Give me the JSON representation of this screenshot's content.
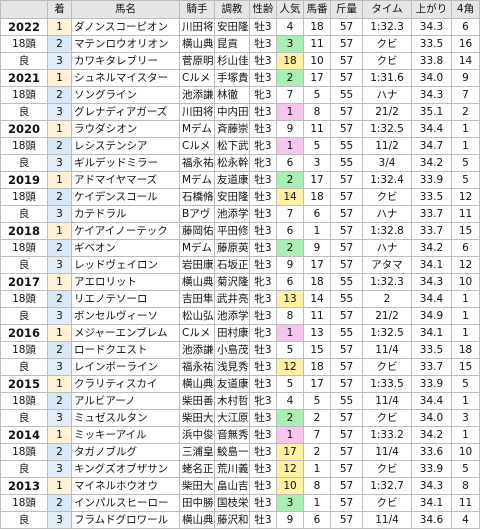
{
  "headers": [
    "",
    "着",
    "馬名",
    "騎手",
    "調教",
    "性齢",
    "人気",
    "馬番",
    "斤量",
    "タイム",
    "上がり",
    "4角"
  ],
  "years": [
    {
      "year": "2022",
      "runners": "18頭",
      "condition": "良",
      "rows": [
        {
          "pos": "1",
          "horse": "ダノンスコーピオン",
          "jockey": "川田将",
          "trainer": "安田隆",
          "sexage": "牡3",
          "pop": "4",
          "post": "18",
          "wt": "57",
          "time": "1:32.3",
          "diff": "",
          "last3f": "34.3",
          "corner": "6"
        },
        {
          "pos": "2",
          "horse": "マテンロウオリオン",
          "jockey": "横山典",
          "trainer": "昆貢",
          "sexage": "牡3",
          "pop": "3",
          "post": "11",
          "wt": "57",
          "time": "",
          "diff": "クビ",
          "last3f": "33.5",
          "corner": "16"
        },
        {
          "pos": "3",
          "horse": "カワキタレブリー",
          "jockey": "菅原明",
          "trainer": "杉山佳",
          "sexage": "牡3",
          "pop": "18",
          "post": "10",
          "wt": "57",
          "time": "",
          "diff": "クビ",
          "last3f": "33.8",
          "corner": "14"
        }
      ]
    },
    {
      "year": "2021",
      "runners": "18頭",
      "condition": "良",
      "rows": [
        {
          "pos": "1",
          "horse": "シュネルマイスター",
          "jockey": "Cルメ",
          "trainer": "手塚貴",
          "sexage": "牡3",
          "pop": "2",
          "post": "17",
          "wt": "57",
          "time": "1:31.6",
          "diff": "",
          "last3f": "34.0",
          "corner": "9"
        },
        {
          "pos": "2",
          "horse": "ソングライン",
          "jockey": "池添謙",
          "trainer": "林徹",
          "sexage": "牝3",
          "pop": "7",
          "post": "5",
          "wt": "55",
          "time": "",
          "diff": "ハナ",
          "last3f": "34.3",
          "corner": "7"
        },
        {
          "pos": "3",
          "horse": "グレナディアガーズ",
          "jockey": "川田将",
          "trainer": "中内田",
          "sexage": "牡3",
          "pop": "1",
          "post": "8",
          "wt": "57",
          "time": "",
          "diff": "21/2",
          "last3f": "35.1",
          "corner": "2"
        }
      ]
    },
    {
      "year": "2020",
      "runners": "18頭",
      "condition": "良",
      "rows": [
        {
          "pos": "1",
          "horse": "ラウダシオン",
          "jockey": "Mデム",
          "trainer": "斉藤崇",
          "sexage": "牡3",
          "pop": "9",
          "post": "11",
          "wt": "57",
          "time": "1:32.5",
          "diff": "",
          "last3f": "34.4",
          "corner": "1"
        },
        {
          "pos": "2",
          "horse": "レシステンシア",
          "jockey": "Cルメ",
          "trainer": "松下武",
          "sexage": "牝3",
          "pop": "1",
          "post": "5",
          "wt": "55",
          "time": "",
          "diff": "11/2",
          "last3f": "34.7",
          "corner": "1"
        },
        {
          "pos": "3",
          "horse": "ギルデッドミラー",
          "jockey": "福永祐",
          "trainer": "松永幹",
          "sexage": "牝3",
          "pop": "6",
          "post": "3",
          "wt": "55",
          "time": "",
          "diff": "3/4",
          "last3f": "34.2",
          "corner": "5"
        }
      ]
    },
    {
      "year": "2019",
      "runners": "18頭",
      "condition": "良",
      "rows": [
        {
          "pos": "1",
          "horse": "アドマイヤマーズ",
          "jockey": "Mデム",
          "trainer": "友道康",
          "sexage": "牡3",
          "pop": "2",
          "post": "17",
          "wt": "57",
          "time": "1:32.4",
          "diff": "",
          "last3f": "33.9",
          "corner": "5"
        },
        {
          "pos": "2",
          "horse": "ケイデンスコール",
          "jockey": "石橋脩",
          "trainer": "安田隆",
          "sexage": "牡3",
          "pop": "14",
          "post": "18",
          "wt": "57",
          "time": "",
          "diff": "クビ",
          "last3f": "33.5",
          "corner": "12"
        },
        {
          "pos": "3",
          "horse": "カテドラル",
          "jockey": "Bアヴ",
          "trainer": "池添学",
          "sexage": "牡3",
          "pop": "7",
          "post": "6",
          "wt": "57",
          "time": "",
          "diff": "ハナ",
          "last3f": "33.7",
          "corner": "11"
        }
      ]
    },
    {
      "year": "2018",
      "runners": "18頭",
      "condition": "良",
      "rows": [
        {
          "pos": "1",
          "horse": "ケイアイノーテック",
          "jockey": "藤岡佑",
          "trainer": "平田修",
          "sexage": "牡3",
          "pop": "6",
          "post": "1",
          "wt": "57",
          "time": "1:32.8",
          "diff": "",
          "last3f": "33.7",
          "corner": "15"
        },
        {
          "pos": "2",
          "horse": "ギベオン",
          "jockey": "Mデム",
          "trainer": "藤原英",
          "sexage": "牡3",
          "pop": "2",
          "post": "9",
          "wt": "57",
          "time": "",
          "diff": "ハナ",
          "last3f": "34.2",
          "corner": "6"
        },
        {
          "pos": "3",
          "horse": "レッドヴェイロン",
          "jockey": "岩田康",
          "trainer": "石坂正",
          "sexage": "牡3",
          "pop": "9",
          "post": "17",
          "wt": "57",
          "time": "",
          "diff": "アタマ",
          "last3f": "34.1",
          "corner": "12"
        }
      ]
    },
    {
      "year": "2017",
      "runners": "18頭",
      "condition": "良",
      "rows": [
        {
          "pos": "1",
          "horse": "アエロリット",
          "jockey": "横山典",
          "trainer": "菊沢隆",
          "sexage": "牝3",
          "pop": "6",
          "post": "18",
          "wt": "55",
          "time": "1:32.3",
          "diff": "",
          "last3f": "34.3",
          "corner": "10"
        },
        {
          "pos": "2",
          "horse": "リエノテソーロ",
          "jockey": "吉田隼",
          "trainer": "武井亮",
          "sexage": "牝3",
          "pop": "13",
          "post": "14",
          "wt": "55",
          "time": "",
          "diff": "2",
          "last3f": "34.4",
          "corner": "1"
        },
        {
          "pos": "3",
          "horse": "ボンセルヴィーソ",
          "jockey": "松山弘",
          "trainer": "池添学",
          "sexage": "牡3",
          "pop": "8",
          "post": "11",
          "wt": "57",
          "time": "",
          "diff": "21/2",
          "last3f": "34.9",
          "corner": "1"
        }
      ]
    },
    {
      "year": "2016",
      "runners": "18頭",
      "condition": "良",
      "rows": [
        {
          "pos": "1",
          "horse": "メジャーエンブレム",
          "jockey": "Cルメ",
          "trainer": "田村康",
          "sexage": "牝3",
          "pop": "1",
          "post": "13",
          "wt": "55",
          "time": "1:32.5",
          "diff": "",
          "last3f": "34.1",
          "corner": "1"
        },
        {
          "pos": "2",
          "horse": "ロードクエスト",
          "jockey": "池添謙",
          "trainer": "小島茂",
          "sexage": "牡3",
          "pop": "5",
          "post": "15",
          "wt": "57",
          "time": "",
          "diff": "11/4",
          "last3f": "33.5",
          "corner": "18"
        },
        {
          "pos": "3",
          "horse": "レインボーライン",
          "jockey": "福永祐",
          "trainer": "浅見秀",
          "sexage": "牡3",
          "pop": "12",
          "post": "18",
          "wt": "57",
          "time": "",
          "diff": "クビ",
          "last3f": "33.7",
          "corner": "15"
        }
      ]
    },
    {
      "year": "2015",
      "runners": "18頭",
      "condition": "良",
      "rows": [
        {
          "pos": "1",
          "horse": "クラリティスカイ",
          "jockey": "横山典",
          "trainer": "友道康",
          "sexage": "牡3",
          "pop": "5",
          "post": "17",
          "wt": "57",
          "time": "1:33.5",
          "diff": "",
          "last3f": "33.9",
          "corner": "5"
        },
        {
          "pos": "2",
          "horse": "アルビアーノ",
          "jockey": "柴田善",
          "trainer": "木村哲",
          "sexage": "牝3",
          "pop": "4",
          "post": "5",
          "wt": "55",
          "time": "",
          "diff": "11/4",
          "last3f": "34.4",
          "corner": "1"
        },
        {
          "pos": "3",
          "horse": "ミュゼスルタン",
          "jockey": "柴田大",
          "trainer": "大江原",
          "sexage": "牡3",
          "pop": "2",
          "post": "2",
          "wt": "57",
          "time": "",
          "diff": "クビ",
          "last3f": "34.0",
          "corner": "3"
        }
      ]
    },
    {
      "year": "2014",
      "runners": "18頭",
      "condition": "良",
      "rows": [
        {
          "pos": "1",
          "horse": "ミッキーアイル",
          "jockey": "浜中俊",
          "trainer": "音無秀",
          "sexage": "牡3",
          "pop": "1",
          "post": "7",
          "wt": "57",
          "time": "1:33.2",
          "diff": "",
          "last3f": "34.2",
          "corner": "1"
        },
        {
          "pos": "2",
          "horse": "タガノブルグ",
          "jockey": "三浦皇",
          "trainer": "鮫島一",
          "sexage": "牡3",
          "pop": "17",
          "post": "2",
          "wt": "57",
          "time": "",
          "diff": "11/4",
          "last3f": "33.6",
          "corner": "10"
        },
        {
          "pos": "3",
          "horse": "キングズオブザサン",
          "jockey": "蛯名正",
          "trainer": "荒川義",
          "sexage": "牡3",
          "pop": "12",
          "post": "1",
          "wt": "57",
          "time": "",
          "diff": "クビ",
          "last3f": "33.9",
          "corner": "5"
        }
      ]
    },
    {
      "year": "2013",
      "runners": "18頭",
      "condition": "良",
      "rows": [
        {
          "pos": "1",
          "horse": "マイネルホウオウ",
          "jockey": "柴田大",
          "trainer": "畠山吉",
          "sexage": "牡3",
          "pop": "10",
          "post": "8",
          "wt": "57",
          "time": "1:32.7",
          "diff": "",
          "last3f": "34.3",
          "corner": "8"
        },
        {
          "pos": "2",
          "horse": "インパルスヒーロー",
          "jockey": "田中勝",
          "trainer": "国枝栄",
          "sexage": "牡3",
          "pop": "3",
          "post": "1",
          "wt": "57",
          "time": "",
          "diff": "クビ",
          "last3f": "34.1",
          "corner": "11"
        },
        {
          "pos": "3",
          "horse": "フラムドグロワール",
          "jockey": "横山典",
          "trainer": "藤沢和",
          "sexage": "牡3",
          "pop": "9",
          "post": "6",
          "wt": "57",
          "time": "",
          "diff": "11/4",
          "last3f": "34.6",
          "corner": "4"
        }
      ]
    }
  ],
  "colors": {
    "fav1": "#f7c6ef",
    "fav2": "#a9eeb5",
    "fav3": "#fff1a4",
    "header_bg": "#e6e6e6"
  }
}
